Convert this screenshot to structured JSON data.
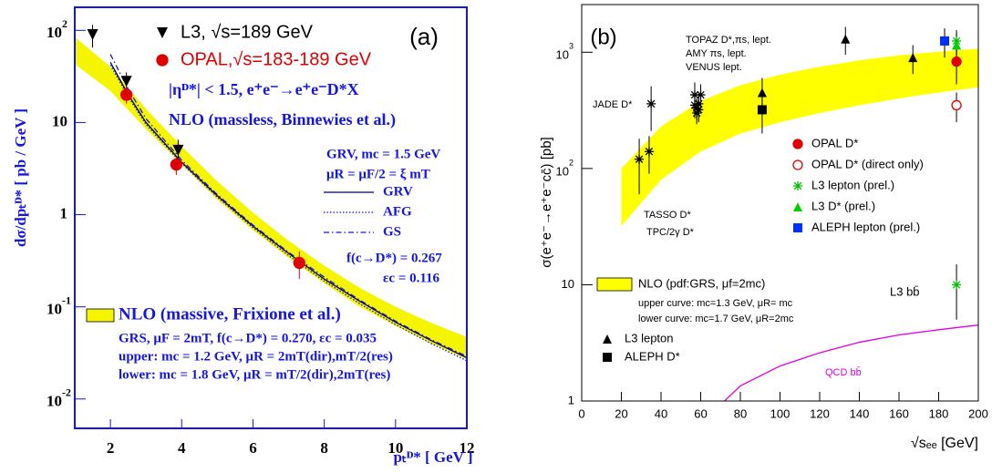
{
  "chart_data": [
    {
      "type": "line",
      "title": "(a)",
      "log_y": true,
      "x_label": "pₜᴰ* [ GeV ]",
      "y_label": "dσ/dpₜᴰ* [ pb / GeV ]",
      "xlim": [
        1,
        12
      ],
      "ylim": [
        0.0048,
        178
      ],
      "xticks": [
        2,
        4,
        6,
        8,
        10,
        12
      ],
      "yticks": [
        {
          "value": 0.01,
          "label": "10",
          "exponent": "-2"
        },
        {
          "value": 0.1,
          "label": "10",
          "exponent": "-1"
        },
        1,
        10,
        {
          "value": 100,
          "label": "10",
          "exponent": "2"
        }
      ],
      "frame_color": "#1515e0",
      "series": [
        {
          "name": "NLO (massive, Frixione et al.)",
          "style": "band",
          "color": "#f5f500",
          "x": [
            1,
            2,
            3,
            4,
            5,
            6,
            7,
            8,
            9,
            10,
            11,
            12
          ],
          "upper": [
            85,
            40,
            14,
            5.5,
            2.3,
            1.05,
            0.52,
            0.28,
            0.16,
            0.1,
            0.067,
            0.047
          ],
          "lower": [
            43,
            22,
            8.5,
            3.5,
            1.45,
            0.68,
            0.34,
            0.18,
            0.1,
            0.062,
            0.04,
            0.027
          ]
        },
        {
          "name": "GRV",
          "style": "line",
          "dash": "solid",
          "color": "#000060",
          "x": [
            2,
            2.5,
            3,
            4,
            5,
            6,
            7,
            8,
            9,
            10,
            11,
            12
          ],
          "values": [
            45,
            20,
            10,
            3.7,
            1.6,
            0.75,
            0.38,
            0.2,
            0.115,
            0.068,
            0.043,
            0.028
          ]
        },
        {
          "name": "AFG",
          "style": "line",
          "dash": "dotted",
          "color": "#1515e0",
          "x": [
            2,
            2.5,
            3,
            4,
            5,
            6,
            7,
            8,
            9,
            10,
            11,
            12
          ],
          "values": [
            42,
            19,
            9.5,
            3.6,
            1.55,
            0.72,
            0.36,
            0.19,
            0.108,
            0.064,
            0.04,
            0.026
          ]
        },
        {
          "name": "GS",
          "style": "line",
          "dash": "dashdot",
          "color": "#1515e0",
          "x": [
            2,
            2.5,
            3,
            4,
            5,
            6,
            7,
            8,
            9,
            10,
            11,
            12
          ],
          "values": [
            55,
            23,
            11,
            3.9,
            1.65,
            0.77,
            0.39,
            0.21,
            0.118,
            0.07,
            0.044,
            0.029
          ]
        },
        {
          "name": "L3, √s=189 GeV",
          "style": "points",
          "marker": "triangle-down",
          "color": "#000000",
          "x": [
            1.5,
            2.45,
            3.9
          ],
          "values": [
            90,
            28,
            5
          ],
          "errors": [
            25,
            7,
            1.5
          ]
        },
        {
          "name": "OPAL,√s=183-189 GeV",
          "style": "points",
          "marker": "circle",
          "color": "#e00000",
          "x": [
            2.45,
            3.85,
            7.3
          ],
          "values": [
            20,
            3.5,
            0.3
          ],
          "errors": [
            4,
            0.8,
            0.1
          ]
        }
      ],
      "annotations": [
        "|ηᴰ*| < 1.5, e⁺e⁻→e⁺e⁻D*X",
        "NLO (massless, Binnewies et al.)",
        "GRV, mc = 1.5 GeV",
        "μR = μF/2 = ξ mT",
        "f(c→D*) = 0.267",
        "εc = 0.116",
        "GRS, μF = 2mT, f(c→D*) = 0.270, εc = 0.035",
        "upper: mc = 1.2 GeV, μR = 2mT(dir),mT/2(res)",
        "lower: mc = 1.8 GeV, μR = mT/2(dir),2mT(res)"
      ]
    },
    {
      "type": "line",
      "title": "(b)",
      "log_y": true,
      "x_label": "√sₑₑ [GeV]",
      "y_label": "σ(e⁺e⁻→e⁺e⁻cc̄) [pb]",
      "xlim": [
        0,
        200
      ],
      "ylim": [
        1,
        2570
      ],
      "xticks": [
        0,
        20,
        40,
        60,
        80,
        100,
        120,
        140,
        160,
        180,
        200
      ],
      "yticks": [
        1,
        10,
        {
          "value": 100,
          "label": "10",
          "exponent": "2"
        },
        {
          "value": 1000,
          "label": "10",
          "exponent": "3"
        }
      ],
      "frame_color": "#000000",
      "series": [
        {
          "name": "NLO (pdf:GRS, μf=2mc)",
          "style": "band",
          "color": "#ffff00",
          "x": [
            20,
            40,
            60,
            80,
            100,
            120,
            140,
            160,
            180,
            200
          ],
          "upper": [
            100,
            230,
            380,
            520,
            640,
            750,
            850,
            940,
            1010,
            1070
          ],
          "lower": [
            32,
            80,
            140,
            200,
            250,
            300,
            350,
            400,
            450,
            500
          ]
        },
        {
          "name": "QCD bb̄",
          "style": "line",
          "dash": "solid",
          "color": "#e000e0",
          "x": [
            72,
            80,
            100,
            120,
            140,
            160,
            180,
            200
          ],
          "values": [
            1,
            1.35,
            2.0,
            2.6,
            3.2,
            3.7,
            4.1,
            4.5
          ]
        },
        {
          "style": "points",
          "marker": "asterisk",
          "color": "#000000",
          "x": [
            29,
            34,
            35,
            57,
            58,
            59,
            60,
            58,
            57,
            59
          ],
          "values": [
            120,
            140,
            360,
            430,
            300,
            360,
            430,
            330,
            350,
            320
          ],
          "errors": [
            60,
            50,
            150,
            120,
            60,
            80,
            100,
            70,
            80,
            70
          ]
        },
        {
          "name": "L3 lepton",
          "style": "points",
          "marker": "triangle",
          "color": "#000000",
          "x": [
            91,
            133,
            167,
            183
          ],
          "values": [
            450,
            1300,
            900,
            1250
          ],
          "errors": [
            150,
            350,
            250,
            350
          ]
        },
        {
          "name": "ALEPH D*",
          "style": "points",
          "marker": "square",
          "color": "#000000",
          "x": [
            91
          ],
          "values": [
            320
          ],
          "errors": [
            120
          ]
        },
        {
          "style": "points",
          "marker": "star",
          "color": "#00c000",
          "x": [
            189
          ],
          "values": [
            10
          ],
          "errors": [
            5
          ]
        },
        {
          "name": "OPAL D*",
          "style": "points",
          "marker": "circle",
          "color": "#e00000",
          "x": [
            189
          ],
          "values": [
            830
          ],
          "errors": [
            300
          ]
        },
        {
          "name": "OPAL D* (direct only)",
          "style": "points",
          "marker": "circle-open",
          "color": "#e00000",
          "x": [
            189
          ],
          "values": [
            350
          ],
          "errors": [
            100
          ]
        },
        {
          "name": "L3 lepton (prel.)",
          "style": "points",
          "marker": "star",
          "color": "#00c000",
          "x": [
            189
          ],
          "values": [
            1250
          ],
          "errors": [
            300
          ]
        },
        {
          "name": "L3 D* (prel.)",
          "style": "points",
          "marker": "triangle",
          "color": "#00d000",
          "x": [
            189
          ],
          "values": [
            1150
          ],
          "errors": [
            300
          ]
        },
        {
          "name": "ALEPH lepton (prel.)",
          "style": "points",
          "marker": "square",
          "color": "#0030ff",
          "x": [
            183
          ],
          "values": [
            1250
          ],
          "errors": [
            350
          ]
        }
      ],
      "annotations": [
        "JADE D*",
        "TASSO D*",
        "TPC/2γ D*",
        "TOPAZ D*,πs, lept.",
        "AMY πs, lept.",
        "VENUS lept.",
        "L3 bb̄",
        "upper curve: mc=1.3 GeV, μR= mc",
        "lower curve: mc=1.7 GeV, μR=2mc"
      ]
    }
  ]
}
